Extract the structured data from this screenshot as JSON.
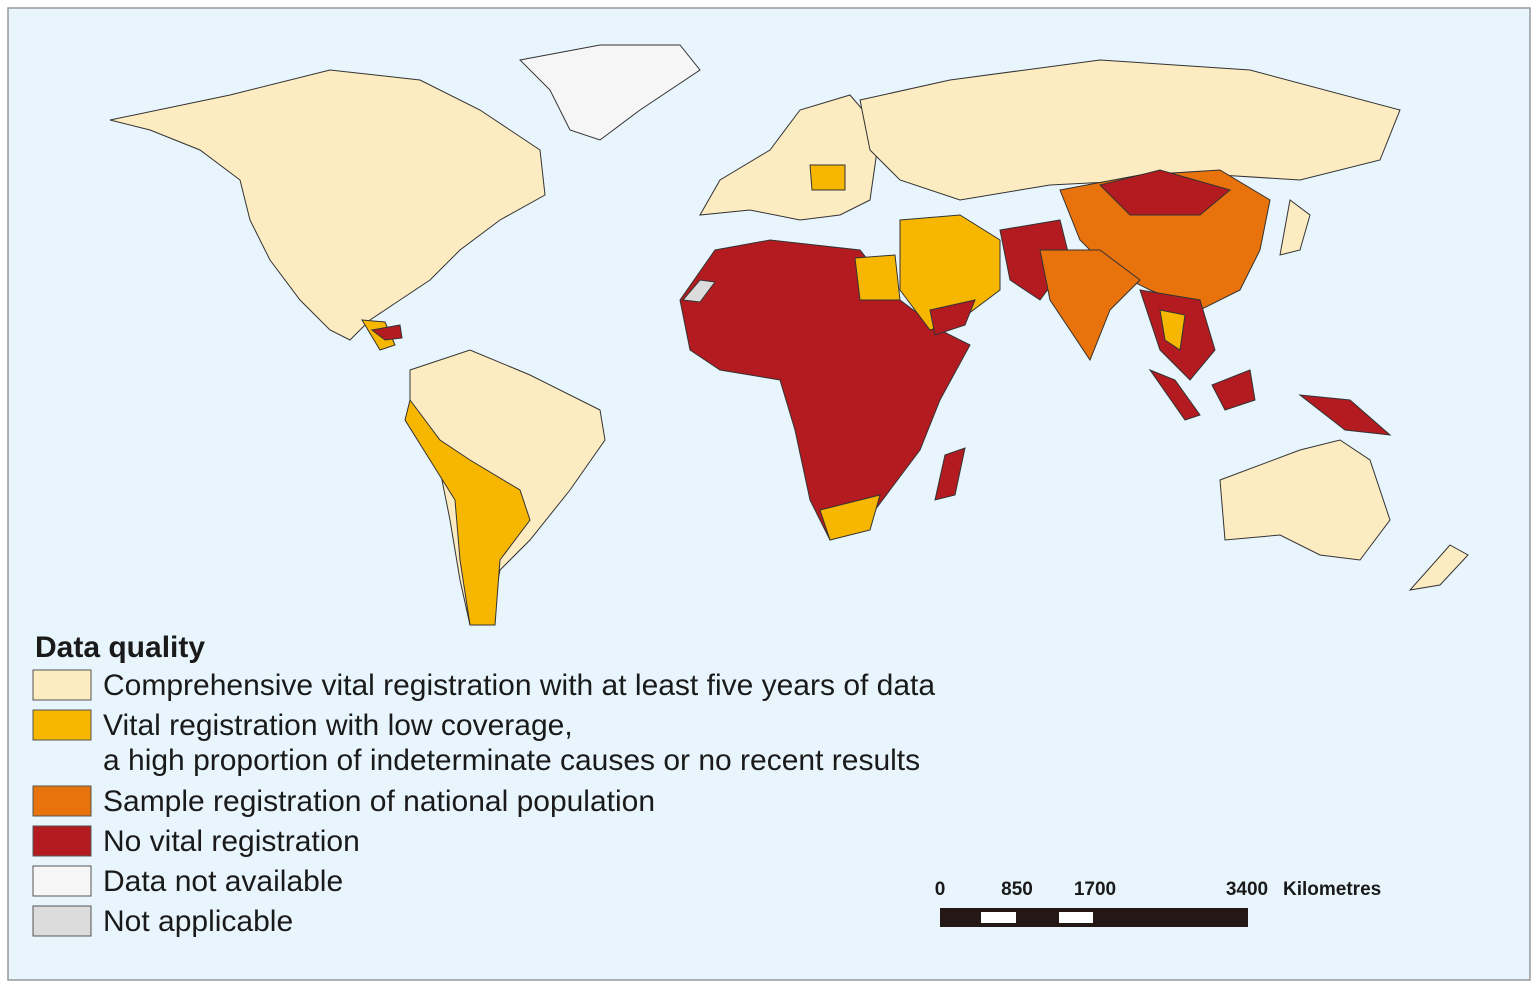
{
  "legend": {
    "title": "Data quality",
    "items": [
      {
        "lines": [
          "Comprehensive vital registration with at least five years of data"
        ],
        "color": "#fdebc1"
      },
      {
        "lines": [
          "Vital registration with low coverage,",
          "a high proportion of indeterminate causes or no recent results"
        ],
        "color": "#f7b600"
      },
      {
        "lines": [
          "Sample registration of national population"
        ],
        "color": "#e8720c"
      },
      {
        "lines": [
          "No vital registration"
        ],
        "color": "#b31b20"
      },
      {
        "lines": [
          "Data not available"
        ],
        "color": "#f6f6f6"
      },
      {
        "lines": [
          "Not applicable"
        ],
        "color": "#dcdcdc"
      }
    ]
  },
  "scale_bar": {
    "labels": [
      "0",
      "850",
      "1700",
      "3400"
    ],
    "unit": "Kilometres"
  }
}
